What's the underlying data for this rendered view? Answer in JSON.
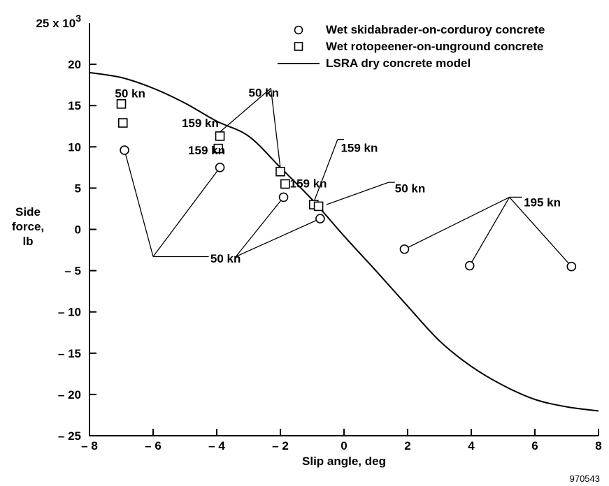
{
  "chart_data": {
    "type": "scatter",
    "xlabel": "Slip angle, deg",
    "ylabel_lines": [
      "Side",
      "force,",
      "lb"
    ],
    "y_multiplier_label": {
      "base": "25 x 10",
      "exp": "3"
    },
    "xlim": [
      -8,
      8
    ],
    "ylim": [
      -25,
      25
    ],
    "y_scale": 1000,
    "x_ticks": [
      -8,
      -6,
      -4,
      -2,
      0,
      2,
      4,
      6,
      8
    ],
    "x_tick_labels": [
      "– 8",
      "– 6",
      "– 4",
      "– 2",
      "0",
      "2",
      "4",
      "6",
      "8"
    ],
    "y_ticks": [
      20,
      15,
      10,
      5,
      0,
      -5,
      -10,
      -15,
      -20,
      -25
    ],
    "y_tick_labels": [
      "20",
      "15",
      "10",
      "5",
      "0",
      "– 5",
      "– 10",
      "– 15",
      "– 20",
      "– 25"
    ],
    "grid": false,
    "legend_position": "top-right",
    "series": [
      {
        "name": "Wet skidabrader-on-corduroy concrete",
        "marker": "circle",
        "points": [
          {
            "x": -6.9,
            "y": 9.6
          },
          {
            "x": -3.9,
            "y": 7.5
          },
          {
            "x": -1.9,
            "y": 3.9
          },
          {
            "x": -0.75,
            "y": 1.3
          },
          {
            "x": 1.9,
            "y": -2.4
          },
          {
            "x": 3.95,
            "y": -4.4
          },
          {
            "x": 7.15,
            "y": -4.5
          }
        ]
      },
      {
        "name": "Wet rotopeener-on-unground concrete",
        "marker": "square",
        "points": [
          {
            "x": -7.0,
            "y": 15.2
          },
          {
            "x": -6.95,
            "y": 12.9
          },
          {
            "x": -3.9,
            "y": 11.3
          },
          {
            "x": -3.95,
            "y": 9.8
          },
          {
            "x": -2.0,
            "y": 7.0
          },
          {
            "x": -1.85,
            "y": 5.5
          },
          {
            "x": -0.95,
            "y": 3.0
          },
          {
            "x": -0.8,
            "y": 2.8
          }
        ]
      },
      {
        "name": "LSRA dry concrete model",
        "marker": "line",
        "points": [
          {
            "x": -8,
            "y": 19.0
          },
          {
            "x": -7,
            "y": 18.4
          },
          {
            "x": -6,
            "y": 17.1
          },
          {
            "x": -5,
            "y": 15.3
          },
          {
            "x": -4,
            "y": 13.1
          },
          {
            "x": -3,
            "y": 11.3
          },
          {
            "x": -2,
            "y": 7.5
          },
          {
            "x": -1,
            "y": 3.6
          },
          {
            "x": 0,
            "y": -0.8
          },
          {
            "x": 1,
            "y": -5.0
          },
          {
            "x": 2,
            "y": -9.3
          },
          {
            "x": 3,
            "y": -13.5
          },
          {
            "x": 4,
            "y": -16.6
          },
          {
            "x": 5,
            "y": -18.9
          },
          {
            "x": 6,
            "y": -20.6
          },
          {
            "x": 7,
            "y": -21.5
          },
          {
            "x": 8,
            "y": -22.0
          }
        ]
      }
    ],
    "annotations": [
      {
        "text": "50 kn",
        "label_x": -7.2,
        "label_y": 16.5,
        "targets": []
      },
      {
        "text": "159 kn",
        "label_x": -5.1,
        "label_y": 12.9,
        "targets": []
      },
      {
        "text": "50 kn",
        "label_x": -3.0,
        "label_y": 16.6,
        "hub_x": -2.3,
        "hub_y": 17.1,
        "targets": [
          {
            "x": -3.9,
            "y": 11.8
          },
          {
            "x": -2.0,
            "y": 7.4
          }
        ]
      },
      {
        "text": "159 kn",
        "label_x": -4.9,
        "label_y": 9.6,
        "targets": []
      },
      {
        "text": "159 kn",
        "label_x": -1.7,
        "label_y": 5.6,
        "targets": []
      },
      {
        "text": "159 kn",
        "label_x": -0.1,
        "label_y": 9.9,
        "hub_x": -0.2,
        "hub_y": 10.9,
        "targets": [
          {
            "x": -0.95,
            "y": 3.3
          }
        ]
      },
      {
        "text": "50 kn",
        "label_x": 1.6,
        "label_y": 5.0,
        "hub_x": 1.4,
        "hub_y": 5.7,
        "targets": [
          {
            "x": -0.55,
            "y": 3.0
          }
        ]
      },
      {
        "text": "50 kn",
        "label_x": -4.2,
        "label_y": -3.5,
        "hub_x": -6.0,
        "hub_y": -3.3,
        "targets": [
          {
            "x": -6.9,
            "y": 9.6
          },
          {
            "x": -3.9,
            "y": 7.5
          }
        ]
      },
      {
        "text": "",
        "hub_x": -3.4,
        "hub_y": -3.3,
        "targets": [
          {
            "x": -1.9,
            "y": 3.9
          },
          {
            "x": -0.75,
            "y": 1.3
          }
        ]
      },
      {
        "text": "195 kn",
        "label_x": 5.65,
        "label_y": 3.3,
        "hub_x": 5.2,
        "hub_y": 3.9,
        "targets": [
          {
            "x": 1.9,
            "y": -2.4
          },
          {
            "x": 3.95,
            "y": -4.4
          },
          {
            "x": 7.15,
            "y": -4.5
          }
        ]
      }
    ]
  },
  "figure_id": "970543"
}
